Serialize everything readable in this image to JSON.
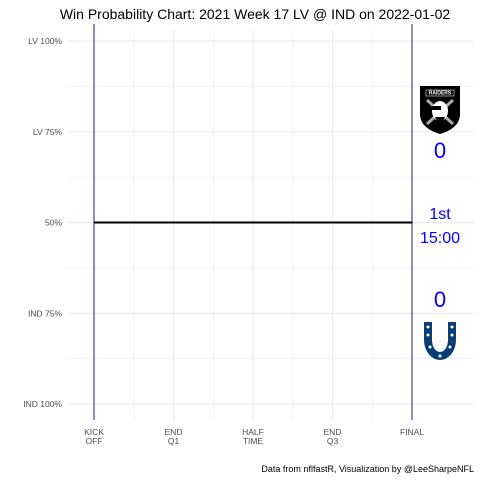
{
  "chart_data": {
    "type": "line",
    "title": "Win Probability Chart: 2021 Week 17 LV @ IND on 2022-01-02",
    "caption": "Data from nflfastR, Visualization by @LeeSharpeNFL",
    "y_ticks": [
      {
        "value": 1.0,
        "label": "LV 100%"
      },
      {
        "value": 0.75,
        "label": "LV 75%"
      },
      {
        "value": 0.5,
        "label": "50%"
      },
      {
        "value": 0.25,
        "label": "IND 75%"
      },
      {
        "value": 0.0,
        "label": "IND 100%"
      }
    ],
    "x_ticks": [
      {
        "value": 0,
        "lines": [
          "KICK",
          "OFF"
        ]
      },
      {
        "value": 900,
        "lines": [
          "END",
          "Q1"
        ]
      },
      {
        "value": 1800,
        "lines": [
          "HALF",
          "TIME"
        ]
      },
      {
        "value": 2700,
        "lines": [
          "END",
          "Q3"
        ]
      },
      {
        "value": 3600,
        "lines": [
          "FINAL"
        ]
      }
    ],
    "xlim": [
      0,
      3600
    ],
    "ylim": [
      0,
      1
    ],
    "grid": true,
    "series": [
      {
        "x": [
          0,
          3600
        ],
        "y": [
          0.5,
          0.5
        ],
        "color": "#000000"
      }
    ],
    "away": {
      "team": "LV",
      "score": "0",
      "logo": "raiders-logo-icon"
    },
    "home": {
      "team": "IND",
      "score": "0",
      "logo": "colts-horseshoe-icon"
    },
    "quarter": "1st",
    "clock": "15:00",
    "colors": {
      "score": "#0000ff",
      "boundary_lines": "#1b1b7a",
      "grid": "#ebebeb",
      "wp_line": "#000000",
      "colts_blue": "#0a3d75",
      "raiders_black": "#000000",
      "raiders_silver": "#a5acaf"
    }
  }
}
